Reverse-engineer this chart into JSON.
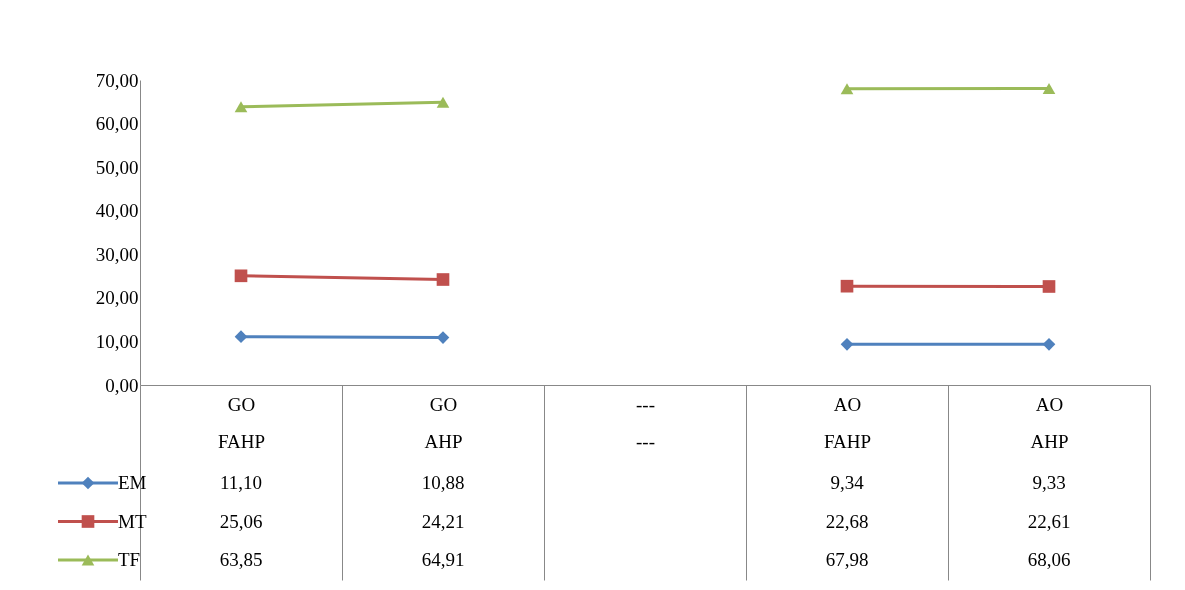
{
  "chart_data": {
    "type": "line",
    "categories": [
      "GO FAHP",
      "GO AHP",
      "--- ---",
      "AO FAHP",
      "AO AHP"
    ],
    "series": [
      {
        "name": "EM",
        "color": "#4f81bd",
        "marker": "diamond",
        "values": [
          11.1,
          10.88,
          null,
          9.34,
          9.33
        ],
        "value_labels": [
          "11,10",
          "10,88",
          null,
          "9,34",
          "9,33"
        ]
      },
      {
        "name": "MT",
        "color": "#c0504d",
        "marker": "square",
        "values": [
          25.06,
          24.21,
          null,
          22.68,
          22.61
        ],
        "value_labels": [
          "25,06",
          "24,21",
          null,
          "22,68",
          "22,61"
        ]
      },
      {
        "name": "TF",
        "color": "#9bbb59",
        "marker": "triangle",
        "values": [
          63.85,
          64.91,
          null,
          67.98,
          68.06
        ],
        "value_labels": [
          "63,85",
          "64,91",
          null,
          "67,98",
          "68,06"
        ]
      }
    ],
    "ylim": [
      0,
      70
    ],
    "yticks": [
      {
        "value": 0,
        "label": "0,00"
      },
      {
        "value": 10,
        "label": "10,00"
      },
      {
        "value": 20,
        "label": "20,00"
      },
      {
        "value": 30,
        "label": "30,00"
      },
      {
        "value": 40,
        "label": "40,00"
      },
      {
        "value": 50,
        "label": "50,00"
      },
      {
        "value": 60,
        "label": "60,00"
      },
      {
        "value": 70,
        "label": "70,00"
      }
    ],
    "legend": "bottom left",
    "grid": false
  }
}
